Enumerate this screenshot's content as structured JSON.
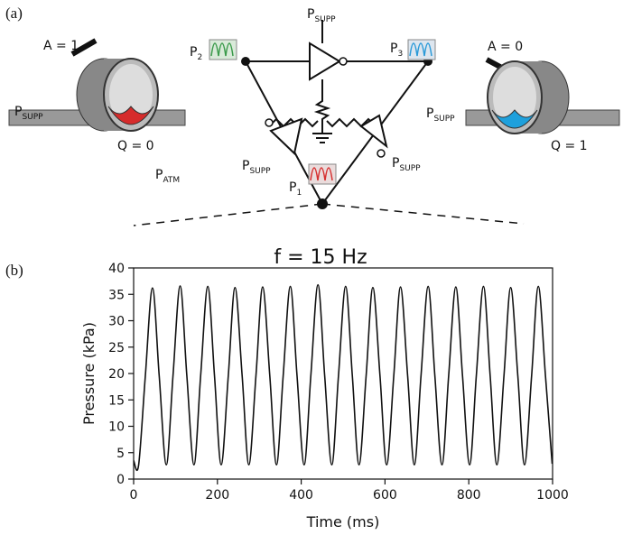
{
  "diagram": {
    "panel_a": "(a)",
    "panel_b": "(b)",
    "p_supp_top": {
      "main": "P",
      "sub": "SUPP"
    },
    "p2": {
      "main": "P",
      "sub": "2"
    },
    "p3": {
      "main": "P",
      "sub": "3"
    },
    "p1": {
      "main": "P",
      "sub": "1"
    },
    "p_supp_left": {
      "main": "P",
      "sub": "SUPP"
    },
    "p_supp_right": {
      "main": "P",
      "sub": "SUPP"
    },
    "p_supp_valve_left": {
      "main": "P",
      "sub": "SUPP"
    },
    "p_supp_valve_right": {
      "main": "P",
      "sub": "SUPP"
    },
    "p_atm": {
      "main": "P",
      "sub": "ATM"
    },
    "a_left": "A = 1",
    "a_right": "A = 0",
    "q_left": "Q = 0",
    "q_right": "Q = 1"
  },
  "chart_data": {
    "type": "line",
    "title": "f = 15 Hz",
    "x_label": "Time (ms)",
    "y_label": "Pressure (kPa)",
    "color": "#111111",
    "x": [
      0,
      12,
      28,
      45,
      61,
      78,
      94,
      111,
      127,
      144,
      160,
      177,
      193,
      209,
      226,
      242,
      259,
      275,
      292,
      308,
      325,
      341,
      357,
      374,
      390,
      407,
      423,
      440,
      456,
      473,
      489,
      506,
      522,
      538,
      555,
      571,
      588,
      604,
      621,
      637,
      654,
      670,
      686,
      703,
      719,
      736,
      752,
      769,
      785,
      802,
      818,
      835,
      851,
      867,
      884,
      900,
      917,
      933,
      950,
      966,
      983,
      999
    ],
    "values": [
      3.5,
      2.7,
      19.6,
      36.2,
      19.6,
      2.7,
      19.6,
      36.6,
      19.6,
      2.7,
      19.6,
      36.5,
      19.6,
      2.7,
      19.6,
      36.3,
      19.6,
      2.7,
      19.6,
      36.4,
      19.6,
      2.7,
      19.6,
      36.5,
      19.6,
      2.7,
      19.6,
      36.8,
      19.6,
      2.7,
      19.6,
      36.5,
      19.6,
      2.7,
      19.6,
      36.3,
      19.6,
      2.7,
      19.6,
      36.4,
      19.6,
      2.7,
      19.6,
      36.5,
      19.6,
      2.7,
      19.6,
      36.4,
      19.6,
      2.7,
      19.6,
      36.5,
      19.6,
      2.7,
      19.6,
      36.3,
      19.6,
      2.7,
      19.6,
      36.5,
      19.6,
      2.9
    ],
    "xlim": [
      0,
      1000
    ],
    "xticks": [
      0,
      200,
      400,
      600,
      800,
      1000
    ],
    "ylim": [
      0,
      40
    ],
    "yticks": [
      0,
      5,
      10,
      15,
      20,
      25,
      30,
      35,
      40
    ],
    "grid": false
  }
}
